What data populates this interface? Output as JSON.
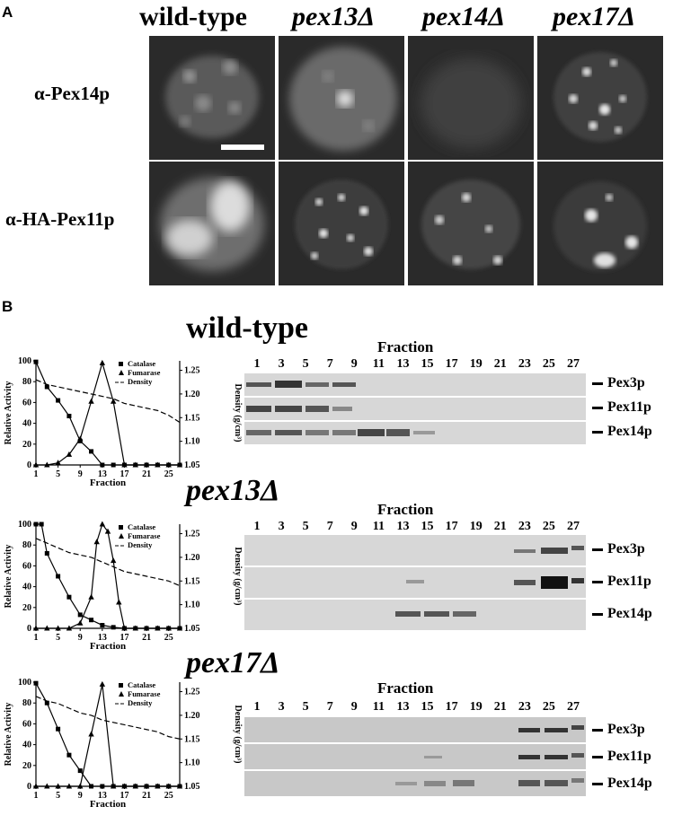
{
  "panel_a": {
    "letter": "A",
    "columns": [
      {
        "label": "wild-type",
        "italic": false
      },
      {
        "label": "pex13Δ",
        "italic": true
      },
      {
        "label": "pex14Δ",
        "italic": true
      },
      {
        "label": "pex17Δ",
        "italic": true
      }
    ],
    "rows": [
      {
        "label": "α-Pex14p"
      },
      {
        "label": "α-HA-Pex11p"
      }
    ]
  },
  "panel_b": {
    "letter": "B",
    "fraction_title": "Fraction",
    "bands": [
      "Pex3p",
      "Pex11p",
      "Pex14p"
    ],
    "strains": [
      {
        "label": "wild-type",
        "italic": false,
        "lanes": [
          "1",
          "3",
          "5",
          "7",
          "9",
          "11",
          "13",
          "15",
          "17",
          "19",
          "21",
          "23",
          "25",
          "27"
        ]
      },
      {
        "label": "pex13Δ",
        "italic": true,
        "lanes": [
          "1",
          "3",
          "5",
          "7",
          "9",
          "11",
          "13",
          "15",
          "17",
          "19",
          "21",
          "23",
          "25",
          "27"
        ]
      },
      {
        "label": "pex17Δ",
        "italic": true,
        "lanes": [
          "1",
          "3",
          "5",
          "7",
          "9",
          "11",
          "13",
          "15",
          "17",
          "19",
          "21",
          "23",
          "25",
          "27"
        ]
      }
    ]
  },
  "chart_data": [
    {
      "type": "line",
      "xlabel": "Fraction",
      "ylabel": "Relative Activity",
      "y2label": "Density (g/cm³)",
      "xticks": [
        "1",
        "5",
        "9",
        "13",
        "17",
        "21",
        "25"
      ],
      "yticks": [
        "0",
        "20",
        "40",
        "60",
        "80",
        "100"
      ],
      "y2ticks": [
        "1.05",
        "1.10",
        "1.15",
        "1.20",
        "1.25"
      ],
      "xlim": [
        1,
        27
      ],
      "ylim": [
        0,
        100
      ],
      "y2lim": [
        1.05,
        1.27
      ],
      "legend": [
        "Catalase",
        "Fumarase",
        "Density"
      ],
      "series": [
        {
          "name": "Catalase",
          "marker": "square",
          "x": [
            1,
            3,
            5,
            7,
            9,
            11,
            13,
            15,
            17,
            19,
            21,
            23,
            25,
            27
          ],
          "values": [
            99,
            75,
            62,
            47,
            23,
            13,
            0,
            0,
            0,
            0,
            0,
            0,
            0,
            0
          ]
        },
        {
          "name": "Fumarase",
          "marker": "triangle",
          "x": [
            1,
            3,
            5,
            7,
            9,
            11,
            13,
            15,
            17,
            19,
            21,
            23,
            25,
            27
          ],
          "values": [
            0,
            0,
            2,
            10,
            25,
            61,
            98,
            61,
            0,
            0,
            0,
            0,
            0,
            0
          ]
        },
        {
          "name": "Density",
          "marker": "dash",
          "x": [
            1,
            3,
            5,
            7,
            9,
            11,
            13,
            15,
            17,
            19,
            21,
            23,
            25,
            27
          ],
          "values": [
            1.23,
            1.22,
            1.215,
            1.21,
            1.205,
            1.2,
            1.195,
            1.19,
            1.18,
            1.175,
            1.17,
            1.165,
            1.155,
            1.14
          ]
        }
      ]
    },
    {
      "type": "line",
      "xlabel": "Fraction",
      "ylabel": "Relative Activity",
      "y2label": "Density (g/cm³)",
      "xticks": [
        "1",
        "5",
        "9",
        "13",
        "17",
        "21",
        "25"
      ],
      "yticks": [
        "0",
        "20",
        "40",
        "60",
        "80",
        "100"
      ],
      "y2ticks": [
        "1.05",
        "1.10",
        "1.15",
        "1.20",
        "1.25"
      ],
      "xlim": [
        1,
        27
      ],
      "ylim": [
        0,
        100
      ],
      "y2lim": [
        1.05,
        1.27
      ],
      "legend": [
        "Catalase",
        "Fumarase",
        "Density"
      ],
      "series": [
        {
          "name": "Catalase",
          "marker": "square",
          "x": [
            1,
            2,
            3,
            5,
            7,
            9,
            11,
            13,
            15,
            17,
            19,
            21,
            23,
            25,
            27
          ],
          "values": [
            100,
            100,
            72,
            50,
            30,
            13,
            8,
            3,
            1,
            0,
            0,
            0,
            0,
            0,
            0
          ]
        },
        {
          "name": "Fumarase",
          "marker": "triangle",
          "x": [
            1,
            3,
            5,
            7,
            9,
            11,
            12,
            13,
            14,
            15,
            16,
            17,
            19,
            21,
            23,
            25,
            27
          ],
          "values": [
            0,
            0,
            0,
            0,
            5,
            30,
            83,
            100,
            93,
            65,
            25,
            0,
            0,
            0,
            0,
            0,
            0
          ]
        },
        {
          "name": "Density",
          "marker": "dash",
          "x": [
            1,
            3,
            5,
            7,
            9,
            11,
            13,
            15,
            17,
            19,
            21,
            23,
            25,
            27
          ],
          "values": [
            1.24,
            1.23,
            1.22,
            1.21,
            1.205,
            1.2,
            1.19,
            1.18,
            1.17,
            1.165,
            1.16,
            1.155,
            1.15,
            1.14
          ]
        }
      ]
    },
    {
      "type": "line",
      "xlabel": "Fraction",
      "ylabel": "Relative Activity",
      "y2label": "Density (g/cm³)",
      "xticks": [
        "1",
        "5",
        "9",
        "13",
        "17",
        "21",
        "25"
      ],
      "yticks": [
        "0",
        "20",
        "40",
        "60",
        "80",
        "100"
      ],
      "y2ticks": [
        "1.05",
        "1.10",
        "1.15",
        "1.20",
        "1.25"
      ],
      "xlim": [
        1,
        27
      ],
      "ylim": [
        0,
        100
      ],
      "y2lim": [
        1.05,
        1.27
      ],
      "legend": [
        "Catalase",
        "Fumarase",
        "Density"
      ],
      "series": [
        {
          "name": "Catalase",
          "marker": "square",
          "x": [
            1,
            3,
            5,
            7,
            9,
            11,
            13,
            15,
            17,
            19,
            21,
            23,
            25,
            27
          ],
          "values": [
            99,
            80,
            55,
            30,
            15,
            0,
            0,
            0,
            0,
            0,
            0,
            0,
            0,
            0
          ]
        },
        {
          "name": "Fumarase",
          "marker": "triangle",
          "x": [
            1,
            3,
            5,
            7,
            9,
            11,
            13,
            15,
            17,
            19,
            21,
            23,
            25,
            27
          ],
          "values": [
            0,
            0,
            0,
            0,
            0,
            50,
            98,
            0,
            0,
            0,
            0,
            0,
            0,
            0
          ]
        },
        {
          "name": "Density",
          "marker": "dash",
          "x": [
            1,
            3,
            5,
            7,
            9,
            11,
            13,
            15,
            17,
            19,
            21,
            23,
            25,
            27
          ],
          "values": [
            1.24,
            1.23,
            1.225,
            1.215,
            1.205,
            1.2,
            1.19,
            1.185,
            1.18,
            1.175,
            1.17,
            1.165,
            1.155,
            1.15
          ]
        }
      ]
    }
  ]
}
